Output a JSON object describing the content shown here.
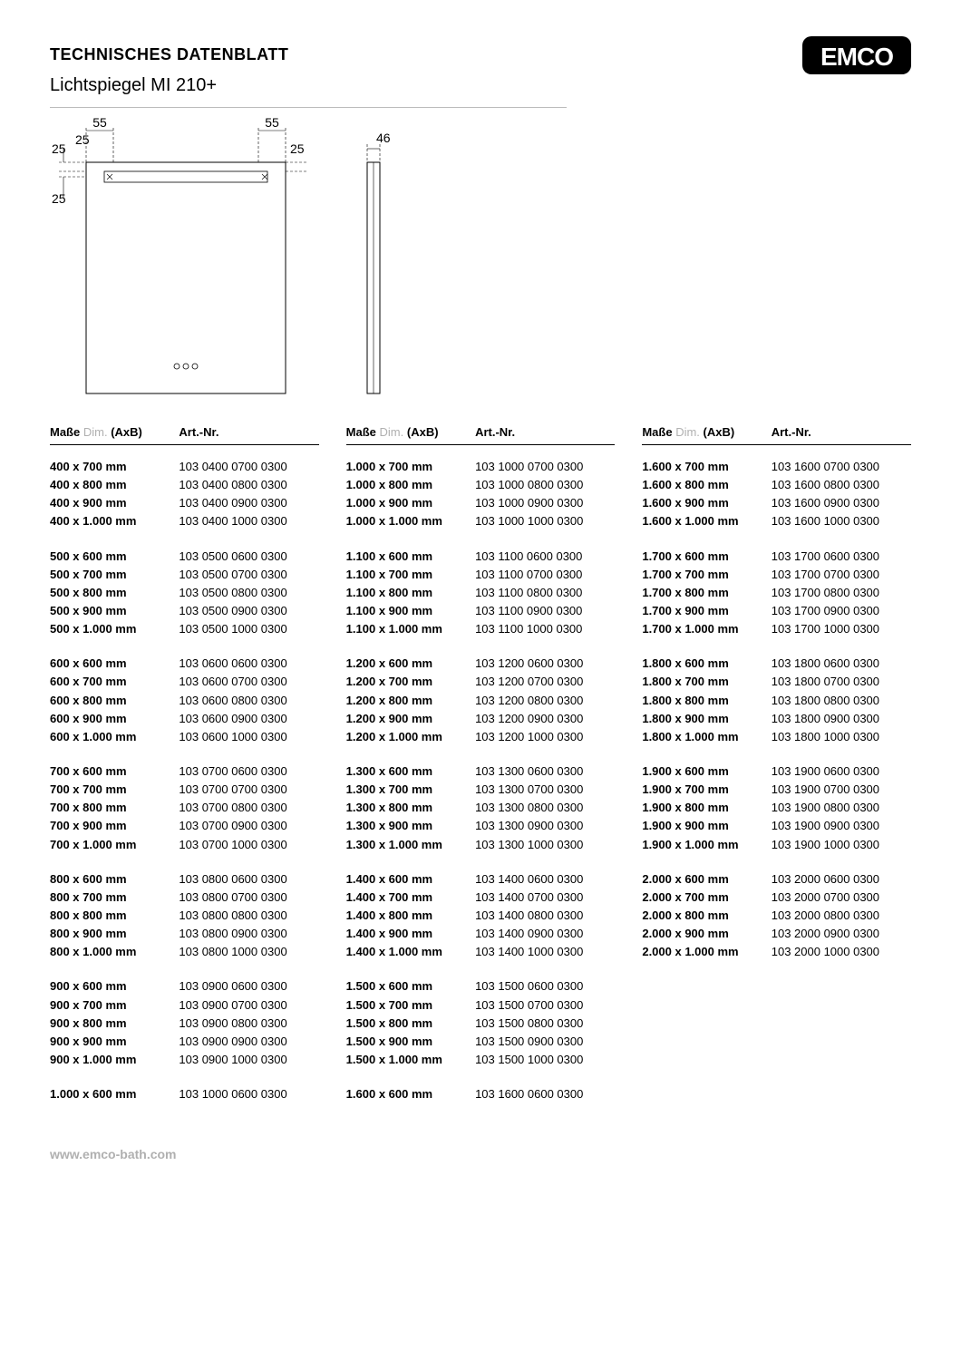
{
  "doc_title": "TECHNISCHES DATENBLATT",
  "product_name": "Lichtspiegel MI 210+",
  "logo_text": "EMCO",
  "footer_url": "www.emco-bath.com",
  "drawing": {
    "dims": {
      "top_left": "55",
      "top_right": "55",
      "left_top": "25",
      "left_inner": "25",
      "right_inner": "25",
      "left_bottom": "25",
      "side_width": "46"
    }
  },
  "table": {
    "header_masse": "Maße",
    "header_dim": "Dim.",
    "header_axb": "(AxB)",
    "header_artnr": "Art.-Nr.",
    "columns": [
      {
        "groups": [
          [
            {
              "dim": "400 x 700 mm",
              "art": "103 0400 0700 0300"
            },
            {
              "dim": "400 x 800 mm",
              "art": "103 0400 0800 0300"
            },
            {
              "dim": "400 x 900 mm",
              "art": "103 0400 0900 0300"
            },
            {
              "dim": "400 x 1.000 mm",
              "art": "103 0400 1000 0300"
            }
          ],
          [
            {
              "dim": "500 x 600 mm",
              "art": "103 0500 0600 0300"
            },
            {
              "dim": "500 x 700 mm",
              "art": "103 0500 0700 0300"
            },
            {
              "dim": "500 x 800 mm",
              "art": "103 0500 0800 0300"
            },
            {
              "dim": "500 x 900 mm",
              "art": "103 0500 0900 0300"
            },
            {
              "dim": "500 x 1.000 mm",
              "art": "103 0500 1000 0300"
            }
          ],
          [
            {
              "dim": "600 x 600 mm",
              "art": "103 0600 0600 0300"
            },
            {
              "dim": "600 x 700 mm",
              "art": "103 0600 0700 0300"
            },
            {
              "dim": "600 x 800 mm",
              "art": "103 0600 0800 0300"
            },
            {
              "dim": "600 x 900 mm",
              "art": "103 0600 0900 0300"
            },
            {
              "dim": "600 x 1.000 mm",
              "art": "103 0600 1000 0300"
            }
          ],
          [
            {
              "dim": "700 x 600 mm",
              "art": "103 0700 0600 0300"
            },
            {
              "dim": "700 x 700 mm",
              "art": "103 0700 0700 0300"
            },
            {
              "dim": "700 x 800 mm",
              "art": "103 0700 0800 0300"
            },
            {
              "dim": "700 x 900 mm",
              "art": "103 0700 0900 0300"
            },
            {
              "dim": "700 x 1.000 mm",
              "art": "103 0700 1000 0300"
            }
          ],
          [
            {
              "dim": "800 x 600 mm",
              "art": "103 0800 0600 0300"
            },
            {
              "dim": "800 x 700 mm",
              "art": "103 0800 0700 0300"
            },
            {
              "dim": "800 x 800 mm",
              "art": "103 0800 0800 0300"
            },
            {
              "dim": "800 x 900 mm",
              "art": "103 0800 0900 0300"
            },
            {
              "dim": "800 x 1.000 mm",
              "art": "103 0800 1000 0300"
            }
          ],
          [
            {
              "dim": "900 x 600 mm",
              "art": "103 0900 0600 0300"
            },
            {
              "dim": "900 x 700 mm",
              "art": "103 0900 0700 0300"
            },
            {
              "dim": "900 x 800 mm",
              "art": "103 0900 0800 0300"
            },
            {
              "dim": "900 x 900 mm",
              "art": "103 0900 0900 0300"
            },
            {
              "dim": "900 x 1.000 mm",
              "art": "103 0900 1000 0300"
            }
          ],
          [
            {
              "dim": "1.000 x 600 mm",
              "art": "103 1000 0600 0300"
            }
          ]
        ]
      },
      {
        "groups": [
          [
            {
              "dim": "1.000 x 700 mm",
              "art": "103 1000 0700 0300"
            },
            {
              "dim": "1.000 x 800 mm",
              "art": "103 1000 0800 0300"
            },
            {
              "dim": "1.000 x 900 mm",
              "art": "103 1000 0900 0300"
            },
            {
              "dim": "1.000 x 1.000 mm",
              "art": "103 1000 1000 0300"
            }
          ],
          [
            {
              "dim": "1.100 x 600 mm",
              "art": "103 1100 0600 0300"
            },
            {
              "dim": "1.100 x 700 mm",
              "art": "103 1100 0700 0300"
            },
            {
              "dim": "1.100 x 800 mm",
              "art": "103 1100 0800 0300"
            },
            {
              "dim": "1.100 x 900 mm",
              "art": "103 1100 0900 0300"
            },
            {
              "dim": "1.100 x 1.000 mm",
              "art": "103 1100 1000 0300"
            }
          ],
          [
            {
              "dim": "1.200 x 600 mm",
              "art": "103 1200 0600 0300"
            },
            {
              "dim": "1.200 x 700 mm",
              "art": "103 1200 0700 0300"
            },
            {
              "dim": "1.200 x 800 mm",
              "art": "103 1200 0800 0300"
            },
            {
              "dim": "1.200 x 900 mm",
              "art": "103 1200 0900 0300"
            },
            {
              "dim": "1.200 x 1.000 mm",
              "art": "103 1200 1000 0300"
            }
          ],
          [
            {
              "dim": "1.300 x 600 mm",
              "art": "103 1300 0600 0300"
            },
            {
              "dim": "1.300 x 700 mm",
              "art": "103 1300 0700 0300"
            },
            {
              "dim": "1.300 x 800 mm",
              "art": "103 1300 0800 0300"
            },
            {
              "dim": "1.300 x 900 mm",
              "art": "103 1300 0900 0300"
            },
            {
              "dim": "1.300 x 1.000 mm",
              "art": "103 1300 1000 0300"
            }
          ],
          [
            {
              "dim": "1.400 x 600 mm",
              "art": "103 1400 0600 0300"
            },
            {
              "dim": "1.400 x 700 mm",
              "art": "103 1400 0700 0300"
            },
            {
              "dim": "1.400 x 800 mm",
              "art": "103 1400 0800 0300"
            },
            {
              "dim": "1.400 x 900 mm",
              "art": "103 1400 0900 0300"
            },
            {
              "dim": "1.400 x 1.000 mm",
              "art": "103 1400 1000 0300"
            }
          ],
          [
            {
              "dim": "1.500 x 600 mm",
              "art": "103 1500 0600 0300"
            },
            {
              "dim": "1.500 x 700 mm",
              "art": "103 1500 0700 0300"
            },
            {
              "dim": "1.500 x 800 mm",
              "art": "103 1500 0800 0300"
            },
            {
              "dim": "1.500 x 900 mm",
              "art": "103 1500 0900 0300"
            },
            {
              "dim": "1.500 x 1.000 mm",
              "art": "103 1500 1000 0300"
            }
          ],
          [
            {
              "dim": "1.600 x 600 mm",
              "art": "103 1600 0600 0300"
            }
          ]
        ]
      },
      {
        "groups": [
          [
            {
              "dim": "1.600 x 700 mm",
              "art": "103 1600 0700 0300"
            },
            {
              "dim": "1.600 x 800 mm",
              "art": "103 1600 0800 0300"
            },
            {
              "dim": "1.600 x 900 mm",
              "art": "103 1600 0900 0300"
            },
            {
              "dim": "1.600 x 1.000 mm",
              "art": "103 1600 1000 0300"
            }
          ],
          [
            {
              "dim": "1.700 x 600 mm",
              "art": "103 1700 0600 0300"
            },
            {
              "dim": "1.700 x 700 mm",
              "art": "103 1700 0700 0300"
            },
            {
              "dim": "1.700 x 800 mm",
              "art": "103 1700 0800 0300"
            },
            {
              "dim": "1.700 x 900 mm",
              "art": "103 1700 0900 0300"
            },
            {
              "dim": "1.700 x 1.000 mm",
              "art": "103 1700 1000 0300"
            }
          ],
          [
            {
              "dim": "1.800 x 600 mm",
              "art": "103 1800 0600 0300"
            },
            {
              "dim": "1.800 x 700 mm",
              "art": "103 1800 0700 0300"
            },
            {
              "dim": "1.800 x 800 mm",
              "art": "103 1800 0800 0300"
            },
            {
              "dim": "1.800 x 900 mm",
              "art": "103 1800 0900 0300"
            },
            {
              "dim": "1.800 x 1.000 mm",
              "art": "103 1800 1000 0300"
            }
          ],
          [
            {
              "dim": "1.900 x 600 mm",
              "art": "103 1900 0600 0300"
            },
            {
              "dim": "1.900 x 700 mm",
              "art": "103 1900 0700 0300"
            },
            {
              "dim": "1.900 x 800 mm",
              "art": "103 1900 0800 0300"
            },
            {
              "dim": "1.900 x 900 mm",
              "art": "103 1900 0900 0300"
            },
            {
              "dim": "1.900 x 1.000 mm",
              "art": "103 1900 1000 0300"
            }
          ],
          [
            {
              "dim": "2.000 x 600 mm",
              "art": "103 2000 0600 0300"
            },
            {
              "dim": "2.000 x 700 mm",
              "art": "103 2000 0700 0300"
            },
            {
              "dim": "2.000 x 800 mm",
              "art": "103 2000 0800 0300"
            },
            {
              "dim": "2.000 x 900 mm",
              "art": "103 2000 0900 0300"
            },
            {
              "dim": "2.000 x 1.000 mm",
              "art": "103 2000 1000 0300"
            }
          ]
        ]
      }
    ]
  }
}
